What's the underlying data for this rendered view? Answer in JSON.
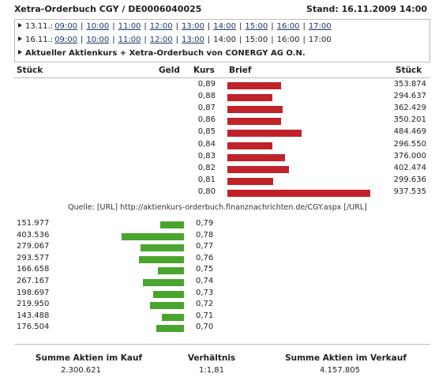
{
  "title": {
    "left": "Xetra-Orderbuch CGY / DE0006040025",
    "right": "Stand: 16.11.2009 14:00"
  },
  "nav": {
    "rows": [
      {
        "date": "13.11.:",
        "times": [
          {
            "t": "09:00",
            "link": true
          },
          {
            "t": "10:00",
            "link": true
          },
          {
            "t": "11:00",
            "link": true
          },
          {
            "t": "12:00",
            "link": true
          },
          {
            "t": "13:00",
            "link": true
          },
          {
            "t": "14:00",
            "link": true
          },
          {
            "t": "15:00",
            "link": true
          },
          {
            "t": "16:00",
            "link": true
          },
          {
            "t": "17:00",
            "link": true
          }
        ]
      },
      {
        "date": "16.11.:",
        "times": [
          {
            "t": "09:00",
            "link": true
          },
          {
            "t": "10:00",
            "link": true
          },
          {
            "t": "11:00",
            "link": true
          },
          {
            "t": "12:00",
            "link": true
          },
          {
            "t": "13:00",
            "link": true
          },
          {
            "t": "14:00",
            "link": false
          },
          {
            "t": "15:00",
            "link": false
          },
          {
            "t": "16:00",
            "link": false
          },
          {
            "t": "17:00",
            "link": false
          }
        ]
      }
    ],
    "info": "Aktueller Aktienkurs + Xetra-Orderbuch von CONERGY AG O.N."
  },
  "headers": {
    "stueck_left": "Stück",
    "geld": "Geld",
    "kurs": "Kurs",
    "brief": "Brief",
    "stueck_right": "Stück"
  },
  "chart_data": [
    {
      "type": "bar",
      "name": "Brief",
      "categories": [
        "0,89",
        "0,88",
        "0,87",
        "0,86",
        "0,85",
        "0,84",
        "0,83",
        "0,82",
        "0,81",
        "0,80"
      ],
      "values": [
        353874,
        294637,
        362429,
        350201,
        484469,
        296550,
        376000,
        402474,
        299636,
        937535
      ],
      "labels": [
        "353.874",
        "294.637",
        "362.429",
        "350.201",
        "484.469",
        "296.550",
        "376.000",
        "402.474",
        "299.636",
        "937.535"
      ],
      "color": "#c0222a"
    },
    {
      "type": "bar",
      "name": "Geld",
      "categories": [
        "0,79",
        "0,78",
        "0,77",
        "0,76",
        "0,75",
        "0,74",
        "0,73",
        "0,72",
        "0,71",
        "0,70"
      ],
      "values": [
        151977,
        403536,
        279067,
        293577,
        166658,
        267167,
        198697,
        219950,
        143488,
        176504
      ],
      "labels": [
        "151.977",
        "403.536",
        "279.067",
        "293.577",
        "166.658",
        "267.167",
        "198.697",
        "219.950",
        "143.488",
        "176.504"
      ],
      "color": "#4aa52e"
    }
  ],
  "source": "Quelle: [URL] http://aktienkurs-orderbuch.finanznachrichten.de/CGY.aspx [/URL]",
  "summary": {
    "kauf_label": "Summe Aktien im Kauf",
    "kauf_value": "2.300.621",
    "verhaeltnis_label": "Verhältnis",
    "verhaeltnis_value": "1:1,81",
    "verkauf_label": "Summe Aktien im Verkauf",
    "verkauf_value": "4.157.805"
  }
}
